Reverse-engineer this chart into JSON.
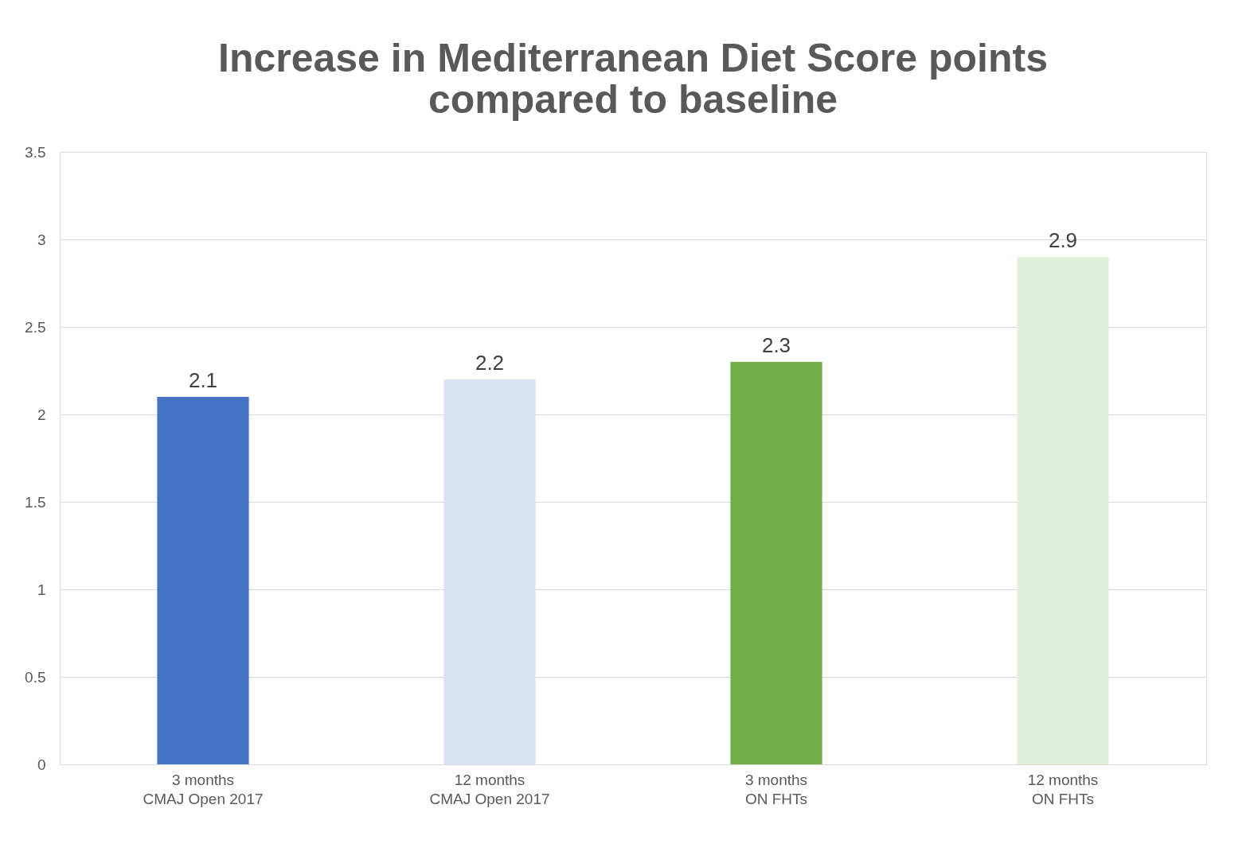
{
  "chart_data": {
    "type": "bar",
    "title": [
      "Increase in Mediterranean Diet Score points",
      "compared to baseline"
    ],
    "categories": [
      "3 months\nCMAJ Open 2017",
      "12 months\nCMAJ Open 2017",
      "3 months\nON FHTs",
      "12 months\nON FHTs"
    ],
    "values": [
      2.1,
      2.2,
      2.3,
      2.9
    ],
    "colors": [
      "#4472c4",
      "#d9e2f3",
      "#70ad47",
      "#e2efda"
    ],
    "ylim": [
      0,
      3.5
    ],
    "yticks": [
      0,
      0.5,
      1,
      1.5,
      2,
      2.5,
      3,
      3.5
    ],
    "grid": "y",
    "data_labels": true
  }
}
